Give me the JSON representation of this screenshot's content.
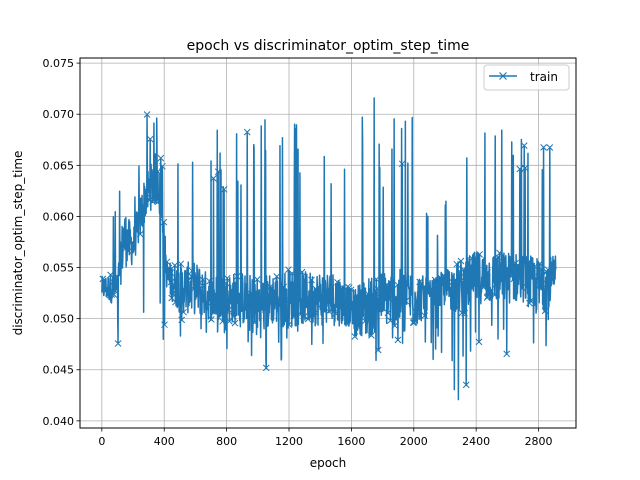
{
  "chart_data": {
    "type": "line",
    "title": "epoch vs discriminator_optim_step_time",
    "xlabel": "epoch",
    "ylabel": "discriminator_optim_step_time",
    "xlim": [
      -140,
      3040
    ],
    "ylim": [
      0.0393,
      0.0755
    ],
    "x_ticks": [
      0,
      400,
      800,
      1200,
      1600,
      2000,
      2400,
      2800
    ],
    "x_tick_labels": [
      "0",
      "400",
      "800",
      "1200",
      "1600",
      "2000",
      "2400",
      "2800"
    ],
    "y_ticks": [
      0.04,
      0.045,
      0.05,
      0.055,
      0.06,
      0.065,
      0.07,
      0.075
    ],
    "y_tick_labels": [
      "0.040",
      "0.045",
      "0.050",
      "0.055",
      "0.060",
      "0.065",
      "0.070",
      "0.075"
    ],
    "grid": true,
    "legend_position": "top-right",
    "series": [
      {
        "name": "train",
        "color": "#1f77b4",
        "marker": "x",
        "x_range": [
          0,
          2910
        ],
        "envelope": {
          "x": [
            0,
            100,
            140,
            200,
            280,
            320,
            360,
            420,
            500,
            600,
            700,
            800,
            900,
            1000,
            1100,
            1200,
            1300,
            1400,
            1500,
            1600,
            1700,
            1800,
            1900,
            2000,
            2100,
            2200,
            2300,
            2400,
            2500,
            2600,
            2700,
            2800,
            2910
          ],
          "low": [
            0.05,
            0.047,
            0.0445,
            0.046,
            0.049,
            0.05,
            0.0448,
            0.05,
            0.048,
            0.047,
            0.049,
            0.047,
            0.047,
            0.042,
            0.047,
            0.0445,
            0.047,
            0.047,
            0.046,
            0.047,
            0.046,
            0.045,
            0.046,
            0.047,
            0.046,
            0.046,
            0.041,
            0.046,
            0.047,
            0.046,
            0.048,
            0.045,
            0.05
          ],
          "high": [
            0.06,
            0.062,
            0.0715,
            0.062,
            0.07,
            0.07,
            0.07,
            0.064,
            0.07,
            0.07,
            0.069,
            0.069,
            0.07,
            0.07,
            0.07,
            0.071,
            0.07,
            0.0715,
            0.07,
            0.063,
            0.074,
            0.069,
            0.071,
            0.073,
            0.061,
            0.062,
            0.066,
            0.069,
            0.069,
            0.069,
            0.069,
            0.0715,
            0.069
          ],
          "base": [
            0.053,
            0.053,
            0.058,
            0.057,
            0.062,
            0.063,
            0.064,
            0.054,
            0.053,
            0.053,
            0.052,
            0.052,
            0.052,
            0.051,
            0.052,
            0.052,
            0.052,
            0.052,
            0.052,
            0.051,
            0.051,
            0.052,
            0.052,
            0.052,
            0.052,
            0.053,
            0.053,
            0.054,
            0.054,
            0.054,
            0.054,
            0.053,
            0.054
          ]
        }
      }
    ]
  }
}
